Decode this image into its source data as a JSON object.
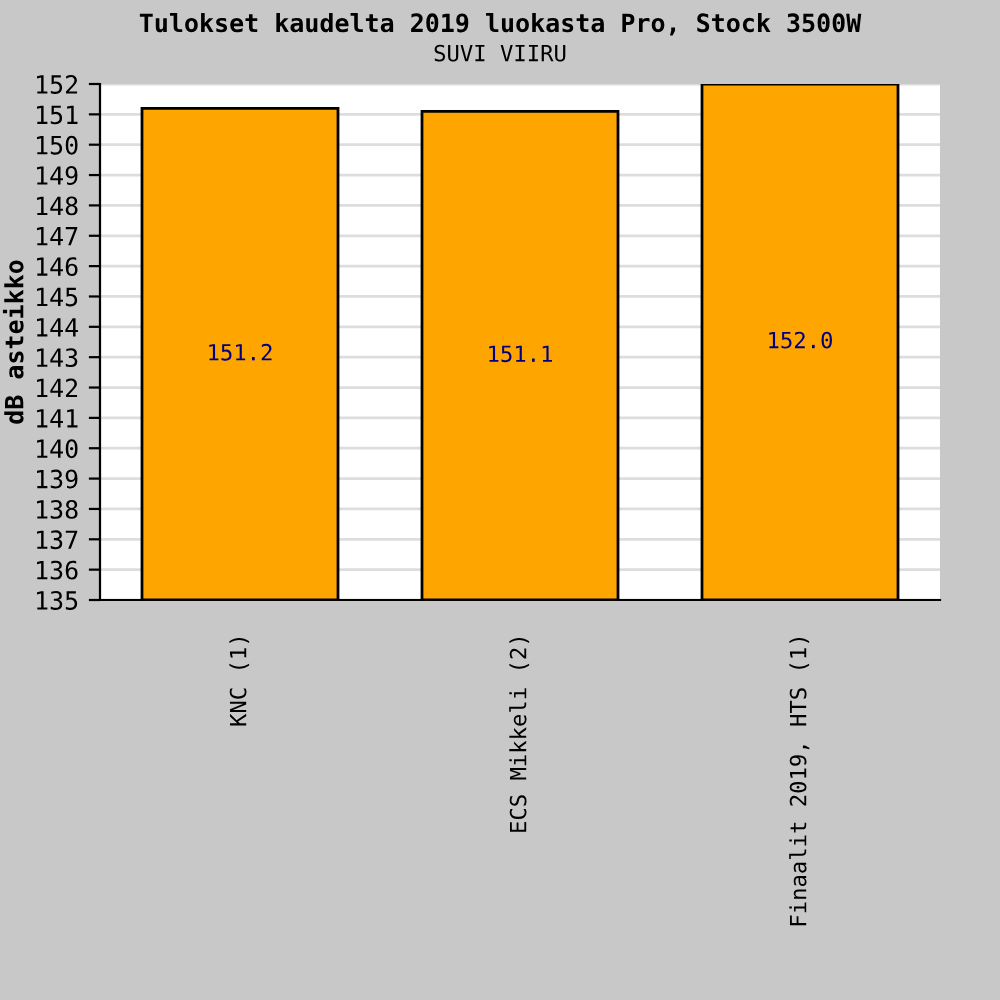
{
  "chart_data": {
    "type": "bar",
    "title": "Tulokset kaudelta 2019 luokasta Pro, Stock 3500W",
    "subtitle": "SUVI VIIRU",
    "ylabel": "dB asteikko",
    "categories": [
      "KNC (1)",
      "ECS Mikkeli (2)",
      "Finaalit 2019, HTS (1)"
    ],
    "values": [
      151.2,
      151.1,
      152.0
    ],
    "value_labels": [
      "151.2",
      "151.1",
      "152.0"
    ],
    "color": "#ffa500",
    "ylim": [
      135,
      152
    ],
    "yticks": [
      135,
      136,
      137,
      138,
      139,
      140,
      141,
      142,
      143,
      144,
      145,
      146,
      147,
      148,
      149,
      150,
      151,
      152
    ],
    "grid": "y"
  }
}
